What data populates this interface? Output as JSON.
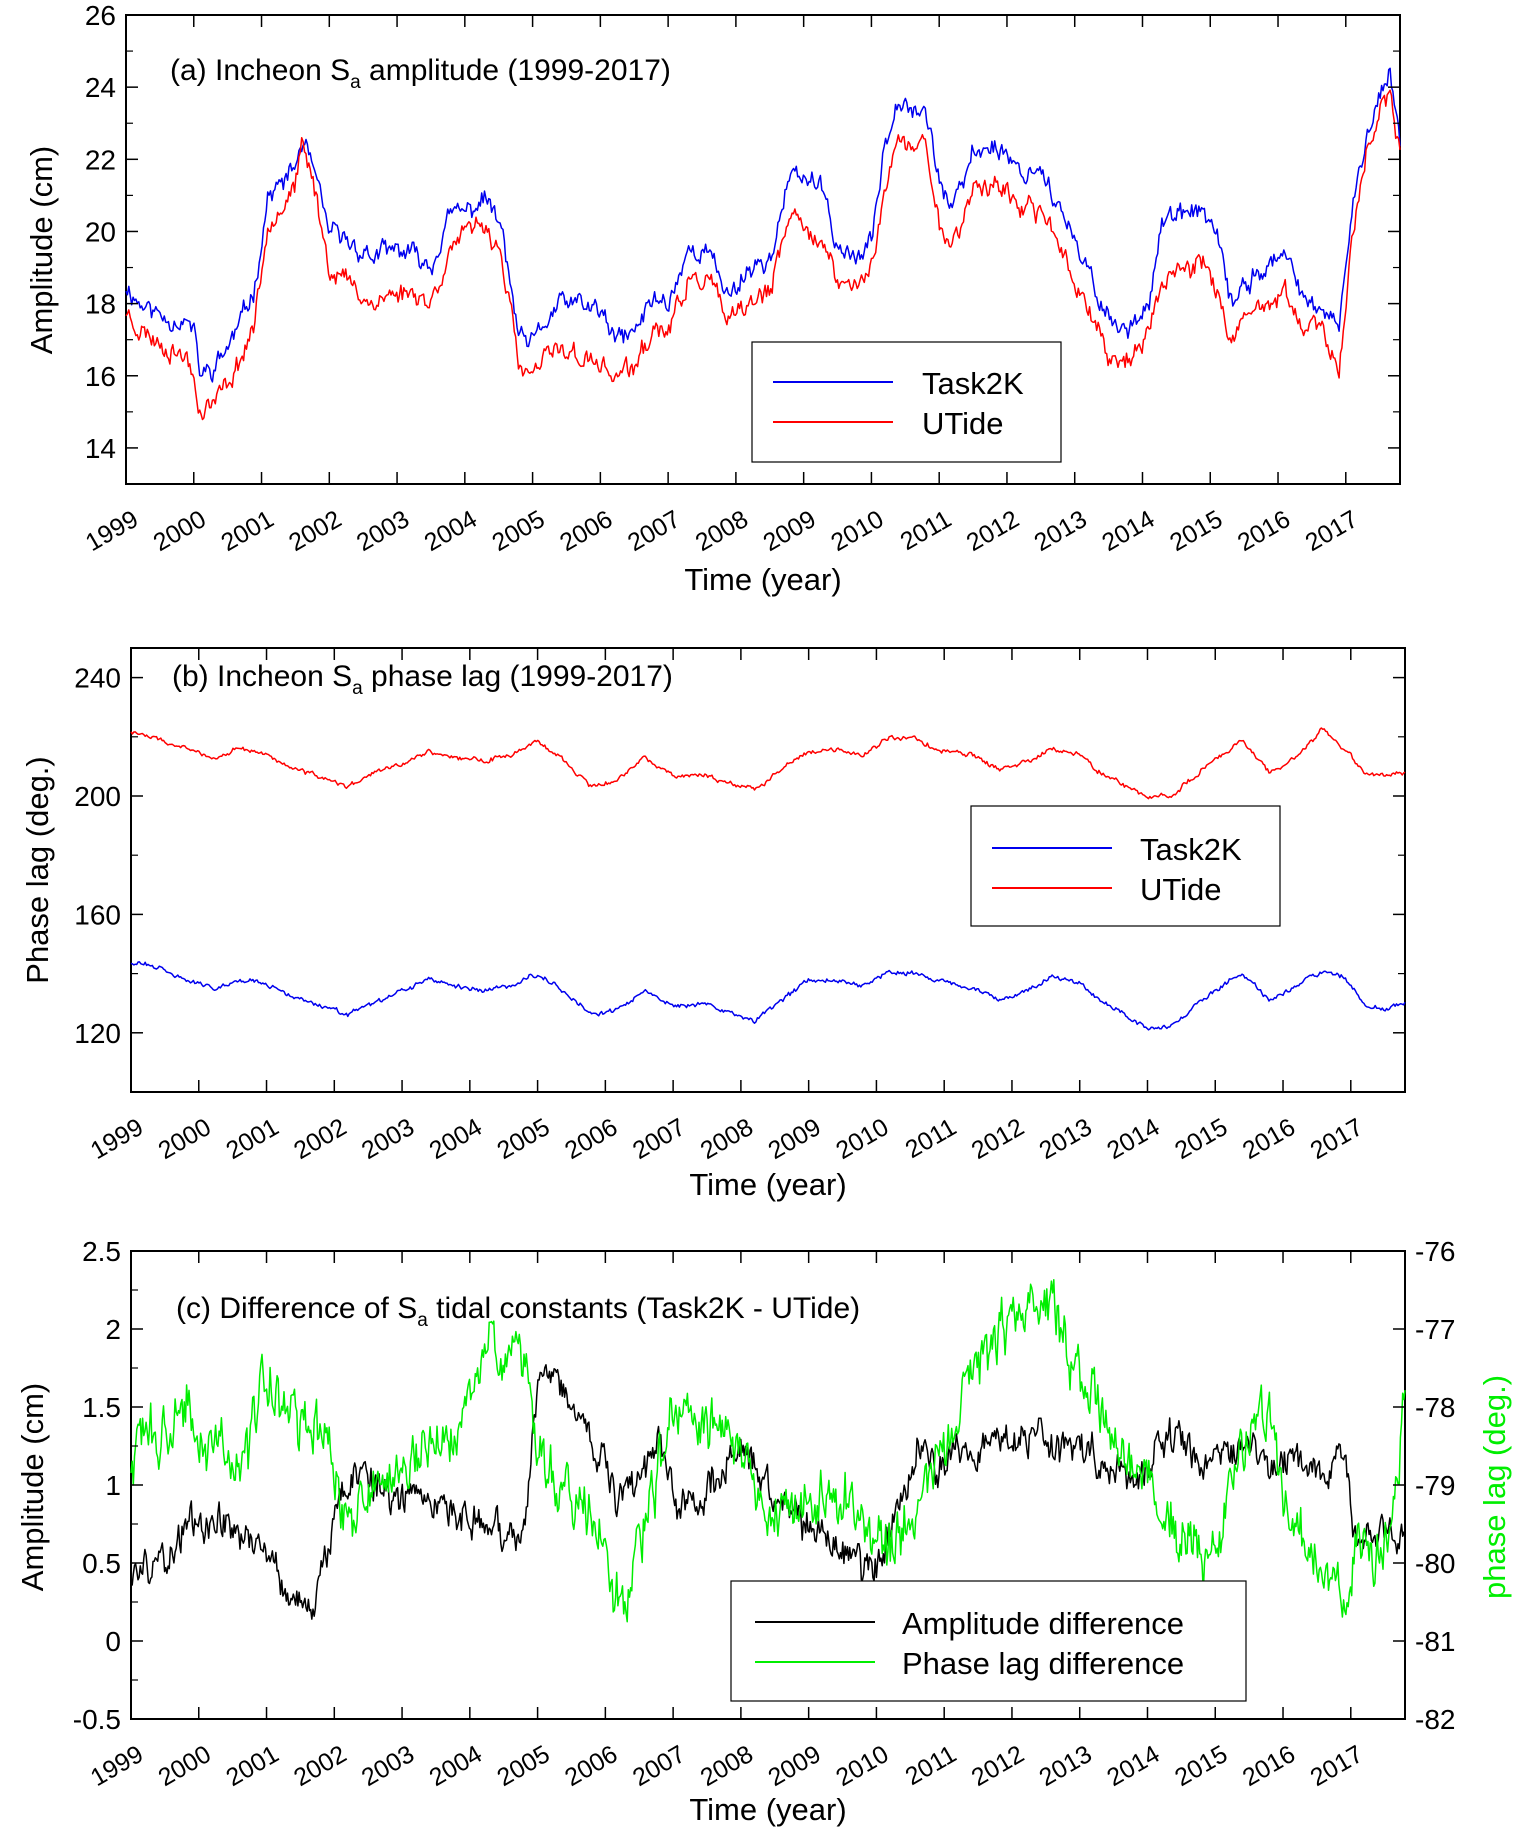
{
  "chart_data": [
    {
      "type": "line",
      "panel": "a",
      "title_prefix": "(a) Incheon S",
      "title_subscript": "a",
      "title_suffix": " amplitude (1999-2017)",
      "xlabel": "Time (year)",
      "ylabel": "Amplitude (cm)",
      "xlim": [
        1999,
        2017.8
      ],
      "ylim": [
        13,
        26
      ],
      "y_ticks": [
        14,
        16,
        18,
        20,
        22,
        24,
        26
      ],
      "x_tick_labels": [
        "1999",
        "2000",
        "2001",
        "2002",
        "2003",
        "2004",
        "2005",
        "2006",
        "2007",
        "2008",
        "2009",
        "2010",
        "2011",
        "2012",
        "2013",
        "2014",
        "2015",
        "2016",
        "2017"
      ],
      "legend_position": "bottom-center",
      "series": [
        {
          "name": "Task2K",
          "color": "#0000ee",
          "seed": 11,
          "noise": 0.28,
          "x": [
            1999.0,
            1999.2,
            1999.6,
            1999.9,
            2000.0,
            2000.1,
            2000.3,
            2000.5,
            2000.7,
            2000.9,
            2001.1,
            2001.3,
            2001.5,
            2001.6,
            2001.75,
            2001.85,
            2002.0,
            2002.3,
            2002.6,
            2003.0,
            2003.3,
            2003.5,
            2003.8,
            2004.1,
            2004.3,
            2004.55,
            2004.8,
            2005.0,
            2005.2,
            2005.4,
            2005.7,
            2006.0,
            2006.2,
            2006.5,
            2006.8,
            2007.0,
            2007.3,
            2007.6,
            2007.9,
            2008.2,
            2008.5,
            2008.8,
            2008.95,
            2009.1,
            2009.3,
            2009.5,
            2009.8,
            2010.0,
            2010.2,
            2010.4,
            2010.6,
            2010.8,
            2011.0,
            2011.2,
            2011.5,
            2011.8,
            2012.0,
            2012.2,
            2012.5,
            2012.8,
            2013.1,
            2013.3,
            2013.5,
            2013.8,
            2014.1,
            2014.3,
            2014.5,
            2014.7,
            2014.9,
            2015.1,
            2015.3,
            2015.6,
            2015.9,
            2016.1,
            2016.3,
            2016.5,
            2016.7,
            2016.9,
            2017.1,
            2017.3,
            2017.5,
            2017.65,
            2017.8
          ],
          "y": [
            18.5,
            18.0,
            17.6,
            17.5,
            17.2,
            16.0,
            16.2,
            16.8,
            17.5,
            18.5,
            21.0,
            21.3,
            21.8,
            22.5,
            21.8,
            21.0,
            20.0,
            19.7,
            19.3,
            19.5,
            19.3,
            19.0,
            20.5,
            20.6,
            21.0,
            20.0,
            17.0,
            16.9,
            17.5,
            18.0,
            18.0,
            17.8,
            17.0,
            17.2,
            18.2,
            18.0,
            19.5,
            19.4,
            18.2,
            19.0,
            19.2,
            21.5,
            21.5,
            21.5,
            21.0,
            19.6,
            19.2,
            19.7,
            22.5,
            23.8,
            23.5,
            23.3,
            21.5,
            20.5,
            22.2,
            22.4,
            22.2,
            21.6,
            21.8,
            20.5,
            19.2,
            18.5,
            17.6,
            17.2,
            18.2,
            20.3,
            20.4,
            20.5,
            20.6,
            19.8,
            18.0,
            18.7,
            19.1,
            19.3,
            18.5,
            18.0,
            17.5,
            17.5,
            20.5,
            22.8,
            23.7,
            24.5,
            22.5
          ]
        },
        {
          "name": "UTide",
          "color": "#ff0000",
          "seed": 23,
          "noise": 0.28,
          "x": [
            1999.0,
            1999.2,
            1999.6,
            1999.9,
            2000.0,
            2000.1,
            2000.3,
            2000.5,
            2000.7,
            2000.9,
            2001.1,
            2001.3,
            2001.5,
            2001.6,
            2001.75,
            2001.85,
            2002.0,
            2002.3,
            2002.6,
            2003.0,
            2003.3,
            2003.5,
            2003.8,
            2004.1,
            2004.3,
            2004.55,
            2004.8,
            2005.0,
            2005.2,
            2005.4,
            2005.7,
            2006.0,
            2006.2,
            2006.5,
            2006.8,
            2007.0,
            2007.3,
            2007.6,
            2007.9,
            2008.2,
            2008.5,
            2008.8,
            2008.95,
            2009.1,
            2009.3,
            2009.5,
            2009.8,
            2010.0,
            2010.2,
            2010.4,
            2010.6,
            2010.8,
            2011.0,
            2011.2,
            2011.5,
            2011.8,
            2012.0,
            2012.2,
            2012.5,
            2012.8,
            2013.1,
            2013.3,
            2013.5,
            2013.8,
            2014.1,
            2014.3,
            2014.5,
            2014.7,
            2014.9,
            2015.1,
            2015.3,
            2015.6,
            2015.9,
            2016.1,
            2016.3,
            2016.5,
            2016.7,
            2016.9,
            2017.1,
            2017.3,
            2017.5,
            2017.65,
            2017.8
          ],
          "y": [
            17.8,
            17.3,
            16.8,
            16.5,
            16.0,
            15.0,
            15.3,
            15.8,
            16.5,
            17.5,
            20.3,
            20.7,
            21.3,
            22.3,
            21.5,
            20.5,
            19.0,
            18.6,
            18.0,
            18.3,
            18.3,
            18.0,
            19.6,
            20.0,
            20.2,
            19.3,
            16.2,
            16.0,
            16.5,
            16.8,
            16.5,
            16.3,
            16.0,
            16.2,
            17.3,
            17.2,
            18.6,
            18.7,
            17.4,
            18.0,
            18.3,
            20.4,
            20.5,
            20.0,
            19.5,
            18.6,
            18.5,
            19.0,
            21.3,
            22.5,
            22.3,
            22.5,
            20.2,
            19.6,
            21.2,
            21.3,
            21.2,
            20.5,
            20.6,
            19.6,
            18.2,
            17.6,
            16.5,
            16.4,
            17.2,
            18.7,
            19.0,
            19.0,
            19.3,
            18.4,
            16.8,
            17.7,
            18.0,
            18.3,
            17.6,
            17.4,
            17.0,
            16.2,
            19.8,
            22.3,
            23.3,
            23.8,
            22.0
          ]
        }
      ]
    },
    {
      "type": "line",
      "panel": "b",
      "title_prefix": "(b) Incheon S",
      "title_subscript": "a",
      "title_suffix": " phase lag (1999-2017)",
      "xlabel": "Time (year)",
      "ylabel": "Phase lag (deg.)",
      "xlim": [
        1999,
        2017.8
      ],
      "ylim": [
        100,
        250
      ],
      "y_ticks": [
        120,
        160,
        200,
        240
      ],
      "x_tick_labels": [
        "1999",
        "2000",
        "2001",
        "2002",
        "2003",
        "2004",
        "2005",
        "2006",
        "2007",
        "2008",
        "2009",
        "2010",
        "2011",
        "2012",
        "2013",
        "2014",
        "2015",
        "2016",
        "2017"
      ],
      "legend_position": "center-right",
      "series": [
        {
          "name": "Task2K",
          "color": "#0000ee",
          "seed": 31,
          "noise": 0.8,
          "x": [
            1999.0,
            1999.4,
            1999.8,
            2000.2,
            2000.6,
            2000.9,
            2001.3,
            2001.7,
            2002.2,
            2002.6,
            2003.0,
            2003.4,
            2003.8,
            2004.2,
            2004.6,
            2005.0,
            2005.4,
            2005.8,
            2006.2,
            2006.6,
            2007.0,
            2007.4,
            2007.8,
            2008.2,
            2008.6,
            2009.0,
            2009.4,
            2009.8,
            2010.2,
            2010.6,
            2011.0,
            2011.4,
            2011.8,
            2012.2,
            2012.6,
            2013.0,
            2013.3,
            2013.7,
            2014.0,
            2014.4,
            2014.8,
            2015.1,
            2015.4,
            2015.8,
            2016.2,
            2016.6,
            2016.9,
            2017.2,
            2017.5,
            2017.8
          ],
          "y": [
            144,
            142,
            138,
            135,
            138,
            137,
            133,
            130,
            126,
            130,
            134,
            138,
            136,
            134,
            136,
            140,
            134,
            126,
            128,
            134,
            129,
            130,
            127,
            124,
            131,
            138,
            138,
            136,
            141,
            140,
            137,
            135,
            131,
            134,
            139,
            137,
            131,
            126,
            121,
            123,
            131,
            136,
            140,
            131,
            136,
            141,
            139,
            130,
            128,
            130
          ]
        },
        {
          "name": "UTide",
          "color": "#ff0000",
          "seed": 47,
          "noise": 0.8,
          "x": [
            1999.0,
            1999.4,
            1999.8,
            2000.2,
            2000.6,
            2000.9,
            2001.3,
            2001.7,
            2002.2,
            2002.6,
            2003.0,
            2003.4,
            2003.8,
            2004.2,
            2004.6,
            2005.0,
            2005.4,
            2005.8,
            2006.2,
            2006.6,
            2007.0,
            2007.4,
            2007.8,
            2008.2,
            2008.6,
            2009.0,
            2009.4,
            2009.8,
            2010.2,
            2010.6,
            2011.0,
            2011.4,
            2011.8,
            2012.2,
            2012.6,
            2013.0,
            2013.3,
            2013.7,
            2014.0,
            2014.4,
            2014.8,
            2015.1,
            2015.4,
            2015.8,
            2016.2,
            2016.6,
            2016.9,
            2017.2,
            2017.5,
            2017.8
          ],
          "y": [
            222,
            219,
            216,
            213,
            216,
            215,
            210,
            207,
            203,
            208,
            211,
            215,
            213,
            212,
            214,
            218,
            212,
            203,
            206,
            213,
            207,
            207,
            205,
            202,
            209,
            215,
            216,
            214,
            220,
            219,
            215,
            214,
            209,
            211,
            216,
            214,
            208,
            203,
            199,
            201,
            209,
            214,
            219,
            208,
            213,
            223,
            216,
            208,
            207,
            208
          ]
        }
      ]
    },
    {
      "type": "line",
      "panel": "c",
      "title_prefix": "(c) Difference of S",
      "title_subscript": "a",
      "title_suffix": " tidal constants (Task2K - UTide)",
      "xlabel": "Time (year)",
      "ylabel": "Amplitude (cm)",
      "y2label": "phase lag (deg.)",
      "xlim": [
        1999,
        2017.8
      ],
      "ylim": [
        -0.5,
        2.5
      ],
      "y_ticks": [
        -0.5,
        0,
        0.5,
        1,
        1.5,
        2,
        2.5
      ],
      "y2lim": [
        -82,
        -76
      ],
      "y2_ticks": [
        -82,
        -81,
        -80,
        -79,
        -78,
        -77,
        -76
      ],
      "x_tick_labels": [
        "1999",
        "2000",
        "2001",
        "2002",
        "2003",
        "2004",
        "2005",
        "2006",
        "2007",
        "2008",
        "2009",
        "2010",
        "2011",
        "2012",
        "2013",
        "2014",
        "2015",
        "2016",
        "2017"
      ],
      "legend_position": "bottom-right",
      "series": [
        {
          "name": "Amplitude difference",
          "color": "#000000",
          "axis": "left",
          "seed": 59,
          "noise": 0.11,
          "x": [
            1999.0,
            1999.2,
            1999.5,
            1999.8,
            2000.1,
            2000.4,
            2000.7,
            2001.0,
            2001.3,
            2001.5,
            2001.7,
            2001.9,
            2002.1,
            2002.4,
            2002.7,
            2003.0,
            2003.3,
            2003.6,
            2003.9,
            2004.2,
            2004.5,
            2004.8,
            2005.0,
            2005.3,
            2005.6,
            2005.9,
            2006.2,
            2006.5,
            2006.8,
            2007.1,
            2007.4,
            2007.7,
            2008.0,
            2008.3,
            2008.6,
            2008.9,
            2009.2,
            2009.5,
            2009.8,
            2010.0,
            2010.3,
            2010.6,
            2010.9,
            2011.2,
            2011.5,
            2011.8,
            2012.1,
            2012.4,
            2012.7,
            2013.0,
            2013.3,
            2013.6,
            2013.9,
            2014.2,
            2014.5,
            2014.8,
            2015.1,
            2015.4,
            2015.7,
            2016.0,
            2016.3,
            2016.6,
            2016.9,
            2017.1,
            2017.4,
            2017.6,
            2017.8
          ],
          "y": [
            0.4,
            0.5,
            0.5,
            0.75,
            0.8,
            0.75,
            0.7,
            0.6,
            0.3,
            0.25,
            0.2,
            0.6,
            1.0,
            1.1,
            0.95,
            0.9,
            1.0,
            0.9,
            0.8,
            0.75,
            0.7,
            0.75,
            1.6,
            1.7,
            1.5,
            1.2,
            0.9,
            1.0,
            1.3,
            0.85,
            0.9,
            1.1,
            1.3,
            1.0,
            0.9,
            0.75,
            0.7,
            0.6,
            0.45,
            0.5,
            0.8,
            1.25,
            1.1,
            1.3,
            1.25,
            1.3,
            1.3,
            1.35,
            1.2,
            1.3,
            1.15,
            1.1,
            1.0,
            1.3,
            1.3,
            1.1,
            1.2,
            1.25,
            1.2,
            1.1,
            1.15,
            1.05,
            1.2,
            0.6,
            0.7,
            0.7,
            0.65
          ]
        },
        {
          "name": "Phase lag difference",
          "color": "#00ee00",
          "axis": "right",
          "seed": 73,
          "noise": 0.35,
          "x": [
            1999.0,
            1999.2,
            1999.5,
            1999.8,
            2000.1,
            2000.4,
            2000.7,
            2001.0,
            2001.3,
            2001.6,
            2001.9,
            2002.1,
            2002.4,
            2002.7,
            2003.0,
            2003.3,
            2003.6,
            2003.9,
            2004.2,
            2004.5,
            2004.8,
            2005.0,
            2005.3,
            2005.6,
            2005.9,
            2006.1,
            2006.3,
            2006.6,
            2006.9,
            2007.2,
            2007.5,
            2007.8,
            2008.1,
            2008.4,
            2008.7,
            2009.0,
            2009.3,
            2009.6,
            2009.9,
            2010.2,
            2010.5,
            2010.8,
            2011.1,
            2011.4,
            2011.7,
            2012.0,
            2012.3,
            2012.6,
            2012.9,
            2013.2,
            2013.5,
            2013.8,
            2014.1,
            2014.4,
            2014.7,
            2014.9,
            2015.2,
            2015.5,
            2015.8,
            2016.0,
            2016.2,
            2016.4,
            2016.6,
            2016.9,
            2017.1,
            2017.3,
            2017.5,
            2017.65,
            2017.8
          ],
          "y": [
            -78.8,
            -78.4,
            -78.3,
            -78.0,
            -78.5,
            -78.6,
            -78.8,
            -77.5,
            -78.1,
            -78.3,
            -78.3,
            -79.5,
            -79.2,
            -78.8,
            -79.0,
            -78.6,
            -78.4,
            -78.3,
            -77.2,
            -77.3,
            -77.3,
            -78.5,
            -79.0,
            -79.2,
            -79.5,
            -80.2,
            -80.5,
            -79.5,
            -78.2,
            -78.0,
            -78.2,
            -78.0,
            -79.0,
            -79.3,
            -79.2,
            -79.4,
            -79.0,
            -79.3,
            -79.8,
            -79.8,
            -79.3,
            -78.8,
            -78.3,
            -77.5,
            -77.3,
            -76.8,
            -76.6,
            -76.7,
            -77.5,
            -78.0,
            -78.4,
            -78.8,
            -79.0,
            -79.5,
            -79.8,
            -80.2,
            -79.0,
            -78.3,
            -78.0,
            -79.2,
            -79.5,
            -79.8,
            -80.0,
            -80.3,
            -79.8,
            -80.0,
            -79.8,
            -79.5,
            -77.5
          ]
        }
      ]
    }
  ]
}
